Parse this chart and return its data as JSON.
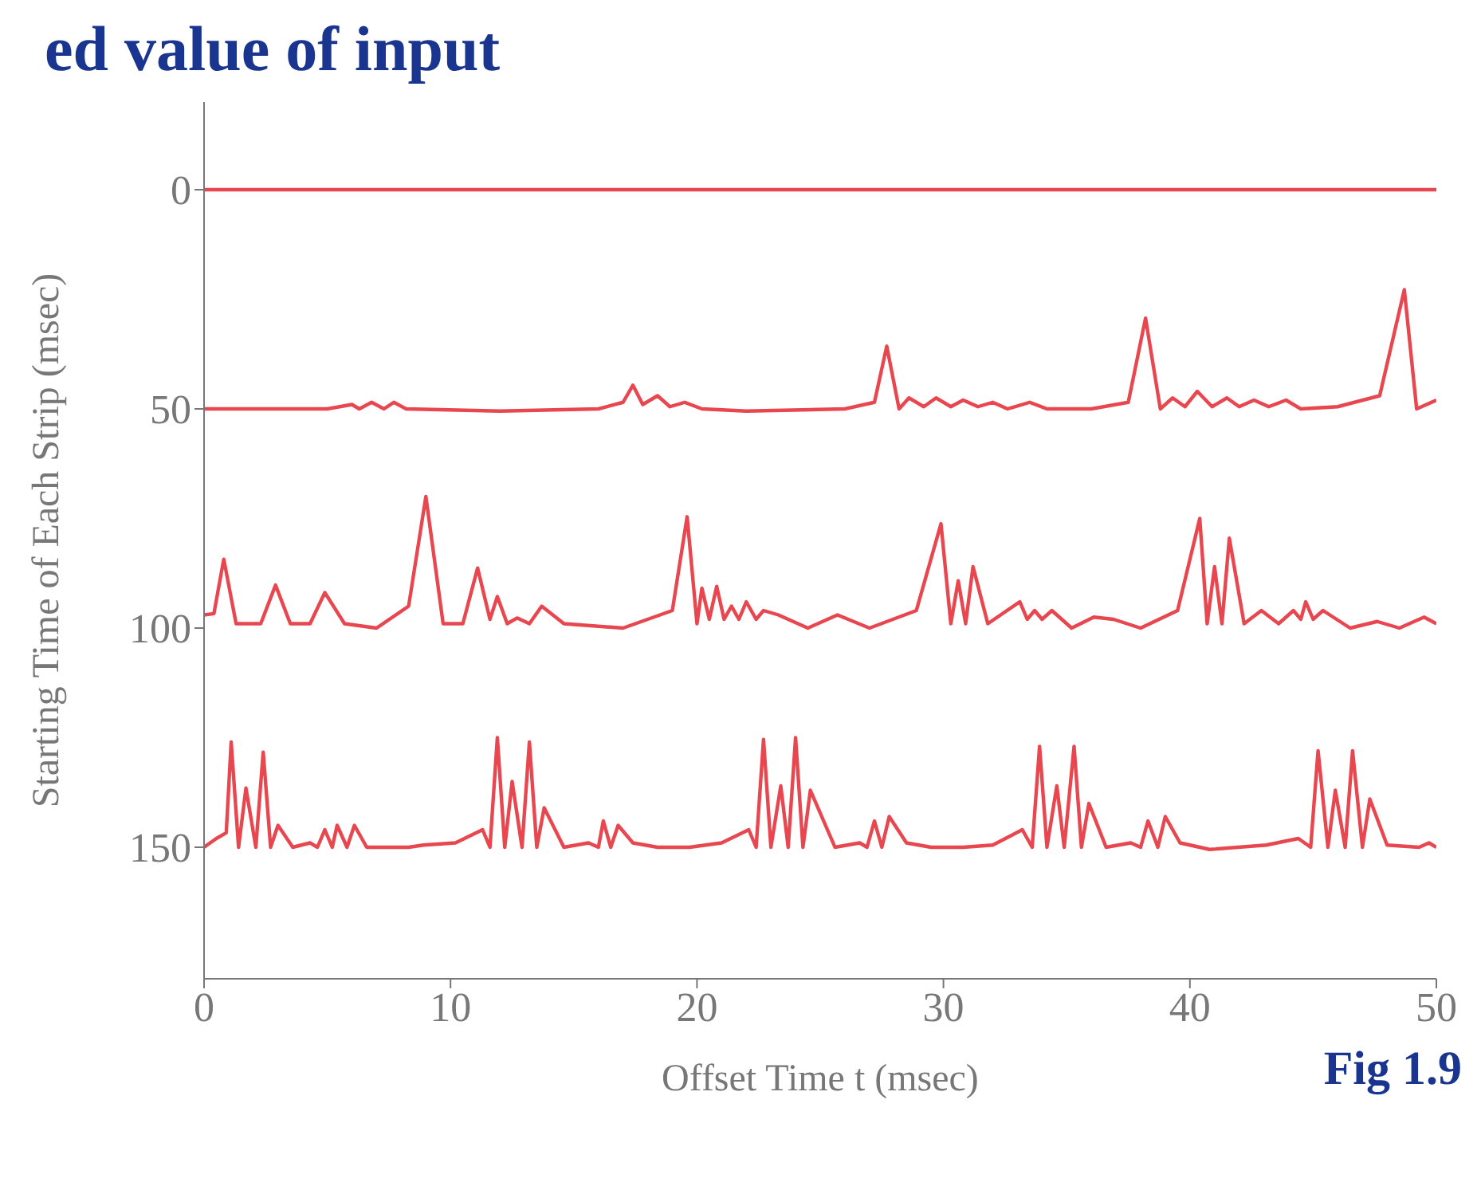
{
  "chart_data": {
    "type": "line",
    "title": "ed value of input",
    "xlabel": "Offset Time t (msec)",
    "ylabel": "Starting Time of Each Strip (msec)",
    "annotations": [
      "Fig 1.9"
    ],
    "xlim": [
      0,
      50
    ],
    "xticks": [
      0,
      10,
      20,
      30,
      40,
      50
    ],
    "ylim": [
      180,
      -20
    ],
    "yticks": [
      0,
      50,
      100,
      150
    ],
    "marker": "none",
    "line_style": "solid",
    "series": [
      {
        "color": "#e8474f",
        "x": [
          0,
          10,
          20,
          30,
          40,
          50
        ],
        "values": [
          0,
          0,
          0,
          0,
          0,
          0
        ]
      },
      {
        "color": "#e8474f",
        "x": [
          0,
          5,
          6,
          6.3,
          6.8,
          7.3,
          7.7,
          8.2,
          12,
          16,
          17,
          17.4,
          17.8,
          18.4,
          18.9,
          19.5,
          20.2,
          22,
          26,
          27.2,
          27.7,
          28.2,
          28.6,
          29.2,
          29.7,
          30.3,
          30.8,
          31.4,
          32,
          32.6,
          33.5,
          34.2,
          36,
          37.5,
          38.2,
          38.8,
          39.3,
          39.8,
          40.3,
          40.9,
          41.5,
          42,
          42.6,
          43.2,
          43.9,
          44.5,
          46,
          47.7,
          48.7,
          49.2,
          50
        ],
        "values": [
          50,
          50,
          49,
          50,
          48.5,
          50,
          48.5,
          50,
          50.5,
          50,
          48.5,
          44.6,
          49,
          47,
          49.5,
          48.5,
          50,
          50.5,
          50,
          48.5,
          35.7,
          50,
          47.5,
          49.5,
          47.5,
          49.5,
          48,
          49.5,
          48.5,
          50,
          48.5,
          50,
          50,
          48.5,
          29.3,
          50,
          47.5,
          49.5,
          46,
          49.5,
          47.5,
          49.5,
          48,
          49.5,
          48,
          50,
          49.5,
          47,
          22.8,
          50,
          48
        ]
      },
      {
        "color": "#e8474f",
        "x": [
          0,
          0.4,
          0.8,
          1.3,
          2.3,
          2.9,
          3.5,
          4.3,
          4.9,
          5.7,
          7,
          8.3,
          9,
          9.7,
          10.5,
          11.1,
          11.6,
          11.9,
          12.3,
          12.7,
          13.2,
          13.7,
          14.6,
          17,
          19,
          19.6,
          20,
          20.2,
          20.5,
          20.8,
          21.1,
          21.4,
          21.7,
          22,
          22.4,
          22.7,
          23.3,
          24.5,
          25.7,
          27,
          28.9,
          29.9,
          30.3,
          30.6,
          30.9,
          31.2,
          31.8,
          33.1,
          33.4,
          33.7,
          34,
          34.4,
          35.2,
          36.1,
          36.9,
          38,
          39.5,
          40.4,
          40.7,
          41,
          41.3,
          41.6,
          42.2,
          42.9,
          43.6,
          44.2,
          44.5,
          44.7,
          45,
          45.4,
          46.5,
          47.6,
          48.5,
          49.5,
          50
        ],
        "values": [
          97,
          96.7,
          84.3,
          99,
          99,
          90.2,
          99,
          99,
          91.9,
          99,
          100,
          95,
          70,
          99,
          99,
          86.3,
          98,
          92.8,
          99,
          97.7,
          99,
          95,
          99,
          100,
          96,
          74.6,
          99,
          90.9,
          98,
          90.5,
          98,
          95,
          98,
          94,
          98,
          96,
          97,
          100,
          97,
          100,
          96,
          76.2,
          99,
          89.2,
          99,
          86,
          99,
          94,
          98,
          96,
          98,
          96,
          100,
          97.5,
          98,
          100,
          96,
          75,
          99,
          86,
          99,
          79.5,
          99,
          96,
          99,
          96,
          98,
          94,
          98,
          96,
          100,
          98.5,
          100,
          97.5,
          99
        ]
      },
      {
        "color": "#e8474f",
        "x": [
          0,
          0.5,
          0.9,
          1.1,
          1.4,
          1.7,
          2.1,
          2.4,
          2.7,
          3,
          3.6,
          4.3,
          4.6,
          4.9,
          5.2,
          5.4,
          5.8,
          6.1,
          6.6,
          8.3,
          8.9,
          10.2,
          11.3,
          11.6,
          11.9,
          12.2,
          12.5,
          12.9,
          13.2,
          13.5,
          13.8,
          14.6,
          15.6,
          16,
          16.2,
          16.5,
          16.8,
          17.4,
          18.4,
          19.7,
          21,
          22.1,
          22.4,
          22.7,
          23,
          23.4,
          23.7,
          24,
          24.3,
          24.6,
          25.6,
          26.6,
          26.9,
          27.2,
          27.5,
          27.8,
          28.5,
          29.5,
          30.8,
          32,
          33.2,
          33.6,
          33.9,
          34.2,
          34.6,
          34.9,
          35.3,
          35.6,
          35.9,
          36.6,
          37.6,
          38,
          38.3,
          38.7,
          39,
          39.6,
          40.8,
          43.1,
          44.4,
          44.9,
          45.2,
          45.6,
          45.9,
          46.3,
          46.6,
          47,
          47.3,
          48,
          49.3,
          49.7,
          50
        ],
        "values": [
          150,
          148,
          146.7,
          126,
          150,
          136.5,
          150,
          128.3,
          150,
          145,
          150,
          149,
          150,
          146,
          150,
          145,
          150,
          145,
          150,
          150,
          149.5,
          149,
          146,
          150,
          125,
          150,
          135,
          150,
          126,
          150,
          141,
          150,
          149,
          150,
          144,
          150,
          145,
          149,
          150,
          150,
          149,
          146,
          150,
          125.4,
          150,
          136,
          150,
          125,
          150,
          137,
          150,
          149,
          150,
          144,
          150,
          143,
          149,
          150,
          150,
          149.5,
          146,
          150,
          127,
          150,
          136,
          150,
          127,
          150,
          140,
          150,
          149,
          150,
          144,
          150,
          143,
          149,
          150.5,
          149.5,
          148,
          150,
          128,
          150,
          137,
          150,
          128,
          150,
          139,
          149.5,
          150,
          149,
          150
        ]
      }
    ]
  }
}
